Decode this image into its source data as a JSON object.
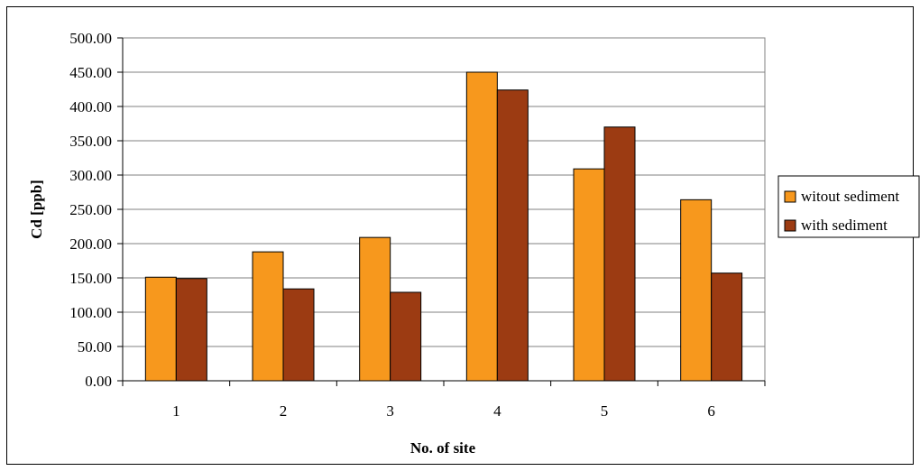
{
  "chart_data": {
    "type": "bar",
    "title": "",
    "xlabel": "No. of site",
    "ylabel": "Cd [ppb]",
    "categories": [
      "1",
      "2",
      "3",
      "4",
      "5",
      "6"
    ],
    "series": [
      {
        "name": "witout sediment",
        "color": "#f7981d",
        "values": [
          151,
          188,
          209,
          450,
          309,
          264
        ]
      },
      {
        "name": "with sediment",
        "color": "#9c3b12",
        "values": [
          149,
          134,
          129,
          424,
          370,
          157
        ]
      }
    ],
    "ylim": [
      0,
      500
    ],
    "yticks": [
      "0.00",
      "50.00",
      "100.00",
      "150.00",
      "200.00",
      "250.00",
      "300.00",
      "350.00",
      "400.00",
      "450.00",
      "500.00"
    ],
    "grid": true,
    "legend_position": "right"
  }
}
